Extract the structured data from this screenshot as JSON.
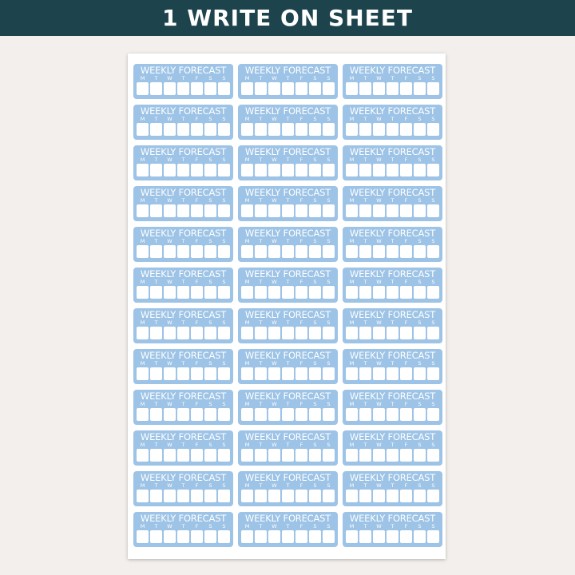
{
  "banner": {
    "title": "1 WRITE ON SHEET",
    "color": "#1d434d"
  },
  "sheet": {
    "rows": 12,
    "columns": 3,
    "sticker": {
      "title": "WEEKLY FORECAST",
      "days": [
        "M",
        "T",
        "W",
        "T",
        "F",
        "S",
        "S"
      ],
      "color": "#9dc3e6"
    }
  }
}
